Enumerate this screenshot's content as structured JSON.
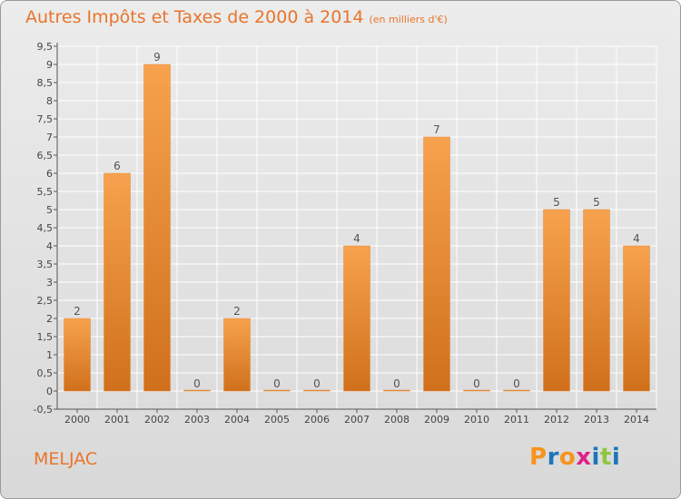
{
  "header": {
    "title": "Autres Impôts et Taxes de 2000 à 2014",
    "unit": "(en milliers d'€)"
  },
  "footer": {
    "commune": "MELJAC",
    "logo_text": "Proxiti",
    "logo_colors": [
      "#f7941d",
      "#1c75bc",
      "#f7941d",
      "#e0218a",
      "#1c75bc",
      "#8dc63f",
      "#1c75bc"
    ]
  },
  "colors": {
    "bar_light": "#f7a24e",
    "bar_dark": "#d0701c",
    "title": "#e8752b",
    "grid": "#ffffff"
  },
  "chart_data": {
    "type": "bar",
    "categories": [
      "2000",
      "2001",
      "2002",
      "2003",
      "2004",
      "2005",
      "2006",
      "2007",
      "2008",
      "2009",
      "2010",
      "2011",
      "2012",
      "2013",
      "2014"
    ],
    "values": [
      2,
      6,
      9,
      0,
      2,
      0,
      0,
      4,
      0,
      7,
      0,
      0,
      5,
      5,
      4
    ],
    "data_labels": [
      "2",
      "6",
      "9",
      "0",
      "2",
      "0",
      "0",
      "4",
      "0",
      "7",
      "0",
      "0",
      "5",
      "5",
      "4"
    ],
    "ylim": [
      -0.5,
      9.5
    ],
    "yticks": [
      -0.5,
      0,
      0.5,
      1,
      1.5,
      2,
      2.5,
      3,
      3.5,
      4,
      4.5,
      5,
      5.5,
      6,
      6.5,
      7,
      7.5,
      8,
      8.5,
      9,
      9.5
    ],
    "ytick_labels": [
      "-0,5",
      "0",
      "0,5",
      "1",
      "1,5",
      "2",
      "2,5",
      "3",
      "3,5",
      "4",
      "4,5",
      "5",
      "5,5",
      "6",
      "6,5",
      "7",
      "7,5",
      "8",
      "8,5",
      "9",
      "9,5"
    ],
    "grid": true,
    "title": "Autres Impôts et Taxes de 2000 à 2014",
    "xlabel": "",
    "ylabel": ""
  }
}
